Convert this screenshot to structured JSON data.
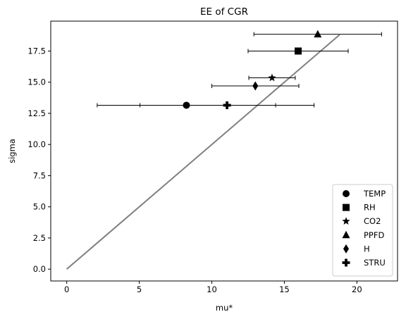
{
  "chart_data": {
    "type": "scatter",
    "title": "EE of CGR",
    "xlabel": "mu*",
    "ylabel": "sigma",
    "xlim": [
      -1.1,
      22.8
    ],
    "ylim": [
      -0.95,
      19.9
    ],
    "xticks": [
      0,
      5,
      10,
      15,
      20
    ],
    "xtick_labels": [
      "0",
      "5",
      "10",
      "15",
      "20"
    ],
    "yticks": [
      0.0,
      2.5,
      5.0,
      7.5,
      10.0,
      12.5,
      15.0,
      17.5
    ],
    "ytick_labels": [
      "0.0",
      "2.5",
      "5.0",
      "7.5",
      "10.0",
      "12.5",
      "15.0",
      "17.5"
    ],
    "grid": false,
    "legend_position": "lower-right",
    "reference_line": {
      "color": "#808080",
      "points": [
        [
          0,
          0
        ],
        [
          18.8,
          18.8
        ]
      ]
    },
    "series": [
      {
        "name": "TEMP",
        "marker": "circle",
        "x": 8.25,
        "y": 13.15,
        "xerr_low": 6.15,
        "xerr_high": 6.15
      },
      {
        "name": "RH",
        "marker": "square",
        "x": 15.95,
        "y": 17.5,
        "xerr_low": 3.45,
        "xerr_high": 3.45
      },
      {
        "name": "CO2",
        "marker": "star",
        "x": 14.15,
        "y": 15.35,
        "xerr_low": 1.6,
        "xerr_high": 1.6
      },
      {
        "name": "PPFD",
        "marker": "triangle",
        "x": 17.3,
        "y": 18.85,
        "xerr_low": 4.4,
        "xerr_high": 4.4
      },
      {
        "name": "H",
        "marker": "diamond",
        "x": 13.0,
        "y": 14.7,
        "xerr_low": 3.0,
        "xerr_high": 3.0
      },
      {
        "name": "STRU",
        "marker": "plus",
        "x": 11.05,
        "y": 13.15,
        "xerr_low": 6.0,
        "xerr_high": 6.0
      }
    ]
  }
}
